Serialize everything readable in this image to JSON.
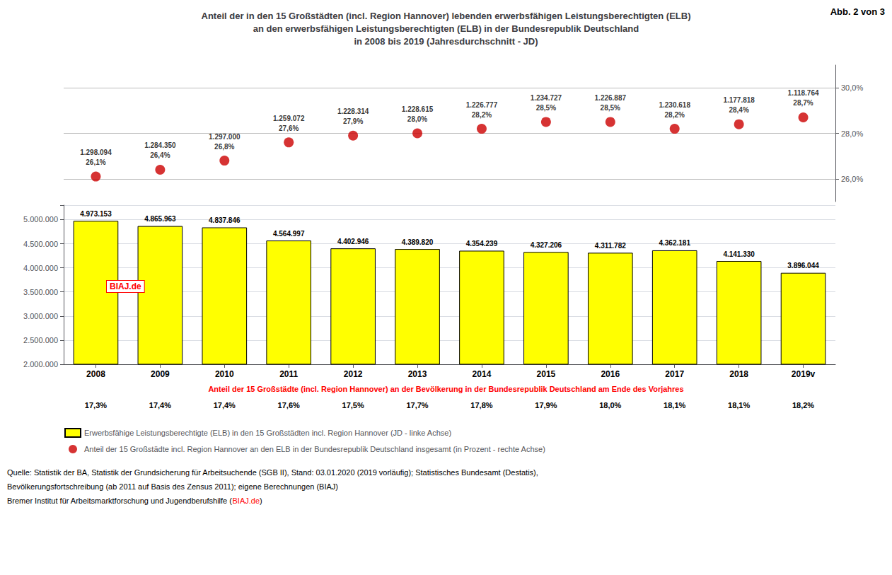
{
  "chart_data": {
    "type": "bar",
    "title": "Anteil der in den 15 Großstädten (incl. Region Hannover) lebenden erwerbsfähigen Leistungsberechtigten (ELB)\nan den erwerbsfähigen Leistungsberechtigten (ELB) in der Bundesrepublik Deutschland\nin 2008 bis 2019 (Jahresdurchschnitt - JD)",
    "corner_label": "Abb. 2 von 3",
    "watermark": "BIAJ.de",
    "categories": [
      "2008",
      "2009",
      "2010",
      "2011",
      "2012",
      "2013",
      "2014",
      "2015",
      "2016",
      "2017",
      "2018",
      "2019v"
    ],
    "series": [
      {
        "name": "Erwerbsfähige Leistungsberechtigte (ELB) in den 15 Großstädten incl. Region Hannover (JD - linke Achse)",
        "type": "bar",
        "color": "#FFFF00",
        "values": [
          4973153,
          4865963,
          4837846,
          4564997,
          4402946,
          4389820,
          4354239,
          4327206,
          4311782,
          4362181,
          4141330,
          3896044
        ],
        "value_labels": [
          "4.973.153",
          "4.865.963",
          "4.837.846",
          "4.564.997",
          "4.402.946",
          "4.389.820",
          "4.354.239",
          "4.327.206",
          "4.311.782",
          "4.362.181",
          "4.141.330",
          "3.896.044"
        ]
      },
      {
        "name": "Anteil der 15 Großstädte incl. Region Hannover an den ELB in der Bundesrepublik Deutschland insgesamt (in Prozent - rechte Achse)",
        "type": "scatter",
        "marker": "circle",
        "axis": "y2",
        "color": "#CC0000",
        "values": [
          26.1,
          26.4,
          26.8,
          27.6,
          27.9,
          28.0,
          28.2,
          28.5,
          28.5,
          28.2,
          28.4,
          28.7
        ],
        "value_labels": [
          "26,1%",
          "26,4%",
          "26,8%",
          "27,6%",
          "27,9%",
          "28,0%",
          "28,2%",
          "28,5%",
          "28,5%",
          "28,2%",
          "28,4%",
          "28,7%"
        ],
        "counts": [
          1298094,
          1284350,
          1297000,
          1259072,
          1228314,
          1228615,
          1226777,
          1234727,
          1226887,
          1230618,
          1177818,
          1118764
        ],
        "count_labels": [
          "1.298.094",
          "1.284.350",
          "1.297.000",
          "1.259.072",
          "1.228.314",
          "1.228.615",
          "1.226.777",
          "1.234.727",
          "1.226.887",
          "1.230.618",
          "1.177.818",
          "1.118.764"
        ]
      }
    ],
    "ylim": [
      2000000,
      5300000
    ],
    "yticks": [
      {
        "value": 2000000,
        "label": "2.000.000"
      },
      {
        "value": 2500000,
        "label": "2.500.000"
      },
      {
        "value": 3000000,
        "label": "3.000.000"
      },
      {
        "value": 3500000,
        "label": "3.500.000"
      },
      {
        "value": 4000000,
        "label": "4.000.000"
      },
      {
        "value": 4500000,
        "label": "4.500.000"
      },
      {
        "value": 5000000,
        "label": "5.000.000"
      }
    ],
    "y2lim": [
      25.0,
      31.0
    ],
    "y2ticks": [
      {
        "value": 26.0,
        "label": "26,0%"
      },
      {
        "value": 28.0,
        "label": "28,0%"
      },
      {
        "value": 30.0,
        "label": "30,0%"
      }
    ],
    "grid": true,
    "data_labels": true,
    "legend": "bottom",
    "population_share": {
      "title": "Anteil der 15 Großstädte (incl. Region Hannover) an der Bevölkerung in der Bundesrepublik Deutschland am Ende des Vorjahres",
      "values": [
        17.3,
        17.4,
        17.4,
        17.6,
        17.5,
        17.7,
        17.8,
        17.9,
        18.0,
        18.1,
        18.1,
        18.2
      ],
      "value_labels": [
        "17,3%",
        "17,4%",
        "17,4%",
        "17,6%",
        "17,5%",
        "17,7%",
        "17,8%",
        "17,9%",
        "18,0%",
        "18,1%",
        "18,1%",
        "18,2%"
      ]
    },
    "source": [
      "Quelle: Statistik der BA, Statistik der Grundsicherung für Arbeitsuchende (SGB II), Stand: 03.01.2020 (2019 vorläufig); Statistisches Bundesamt (Destatis),",
      "Bevölkerungsfortschreibung (ab 2011 auf Basis des Zensus 2011); eigene Berechnungen (BIAJ)",
      "Bremer Institut für Arbeitsmarktforschung und Jugendberufshilfe (BIAJ.de)"
    ]
  }
}
